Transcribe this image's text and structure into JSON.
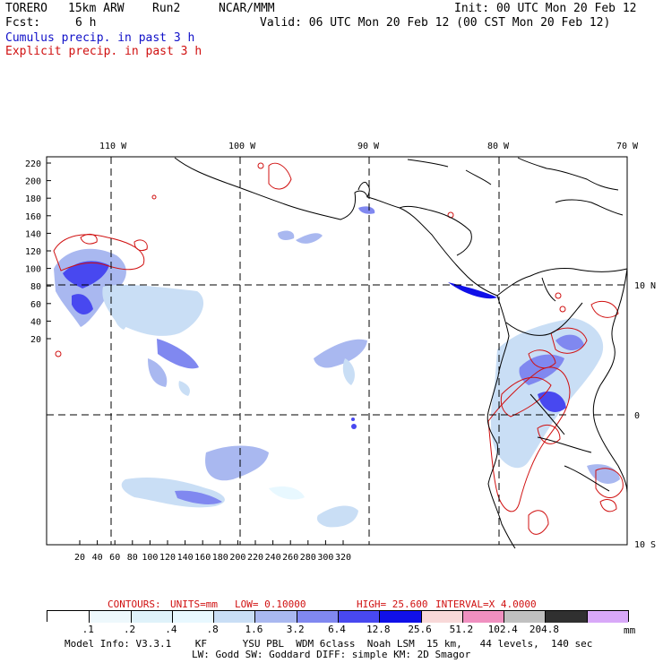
{
  "header": {
    "model": "TORERO",
    "resolution": "15km ARW",
    "run": "Run2",
    "org": "NCAR/MMM",
    "init": "Init: 00 UTC Mon 20 Feb 12",
    "fcst_label": "Fcst:",
    "fcst_value": "6 h",
    "valid": "Valid: 06 UTC Mon 20 Feb 12 (00 CST Mon 20 Feb 12)",
    "cumulus": "Cumulus precip. in past 3 h",
    "explicit": "Explicit precip. in past 3 h"
  },
  "map": {
    "lon_labels": [
      "110 W",
      "100 W",
      "90 W",
      "80 W",
      "70 W"
    ],
    "lat_labels": [
      "10 N",
      "0",
      "10 S"
    ],
    "y_ticks": [
      "220",
      "200",
      "180",
      "160",
      "140",
      "120",
      "100",
      "80",
      "60",
      "40",
      "20"
    ],
    "x_ticks": [
      "20",
      "40",
      "60",
      "80",
      "100",
      "120",
      "140",
      "160",
      "180",
      "200",
      "220",
      "240",
      "260",
      "280",
      "300",
      "320"
    ]
  },
  "contours": {
    "label": "CONTOURS:",
    "units": "UNITS=mm",
    "low": "LOW= 0.10000",
    "high": "HIGH= 25.600",
    "interval": "INTERVAL=X 4.0000"
  },
  "colorbar": {
    "labels": [
      ".1",
      ".2",
      ".4",
      ".8",
      "1.6",
      "3.2",
      "6.4",
      "12.8",
      "25.6",
      "51.2",
      "102.4",
      "204.8"
    ],
    "unit": "mm",
    "colors": [
      "#ffffff",
      "#eef8fc",
      "#dff2fa",
      "#e8f8ff",
      "#c9def5",
      "#a9b8f0",
      "#8088f0",
      "#4848f0",
      "#1010e8",
      "#f8d8d8",
      "#f090c0",
      "#c0c0c0",
      "#303030",
      "#d8a8f8"
    ]
  },
  "footer": {
    "line1": "Model Info: V3.3.1    KF      YSU PBL  WDM 6class  Noah LSM  15 km,   44 levels,  140 sec",
    "line2": "LW: Godd SW: Goddard DIFF: simple KM: 2D Smagor"
  },
  "colors": {
    "cumulus_blue": "#1010c8",
    "explicit_red": "#d01010"
  }
}
